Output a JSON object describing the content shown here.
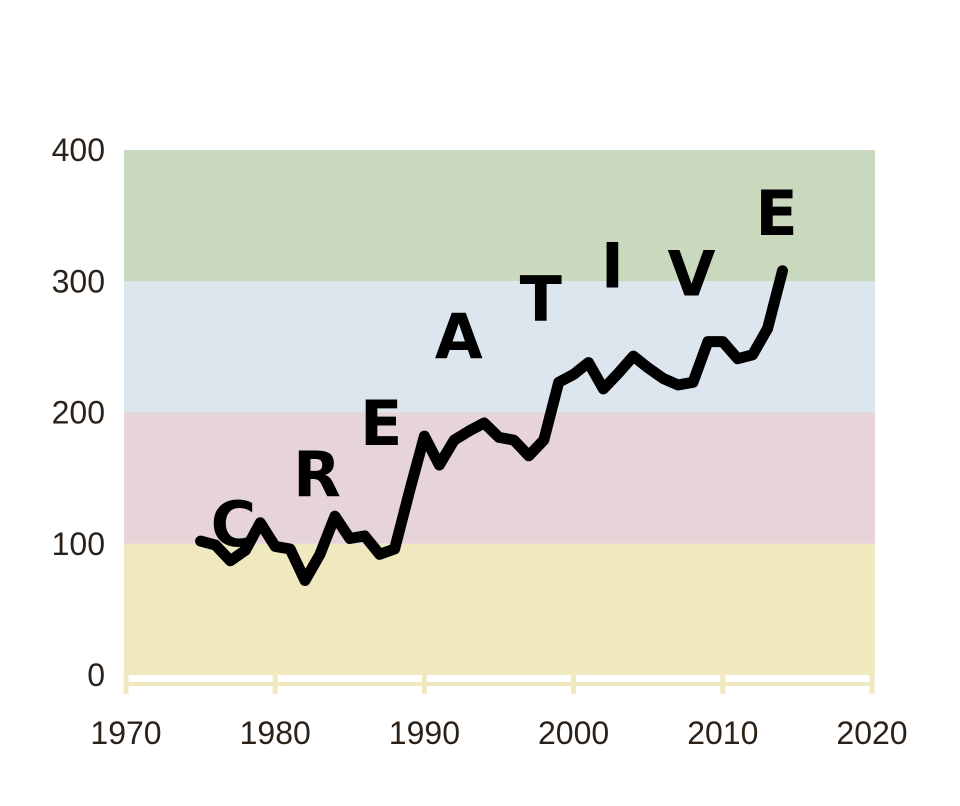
{
  "chart_data": {
    "type": "line",
    "title": "",
    "xlabel": "",
    "ylabel": "",
    "xlim": [
      1970,
      2020
    ],
    "ylim": [
      0,
      400
    ],
    "grid": false,
    "x_ticks": [
      1970,
      1980,
      1990,
      2000,
      2010,
      2020
    ],
    "y_ticks": [
      0,
      100,
      200,
      300,
      400
    ],
    "bands": [
      {
        "from": 0,
        "to": 100,
        "color": "#f0e9c0"
      },
      {
        "from": 100,
        "to": 200,
        "color": "#e6d4d8"
      },
      {
        "from": 200,
        "to": 300,
        "color": "#dde6ee"
      },
      {
        "from": 300,
        "to": 400,
        "color": "#cad9be"
      }
    ],
    "line_color": "#000000",
    "series": [
      {
        "x": [
          1975,
          1976,
          1977,
          1978,
          1979,
          1980,
          1981,
          1982,
          1983,
          1984,
          1985,
          1986,
          1987,
          1988,
          1989,
          1990,
          1991,
          1992,
          1993,
          1994,
          1995,
          1996,
          1997,
          1998,
          1999,
          2000,
          2001,
          2002,
          2003,
          2004,
          2005,
          2006,
          2007,
          2008,
          2009,
          2010,
          2011,
          2012,
          2013,
          2014
        ],
        "y": [
          102,
          99,
          87,
          95,
          116,
          98,
          96,
          72,
          92,
          121,
          104,
          106,
          92,
          96,
          140,
          182,
          160,
          179,
          186,
          192,
          181,
          179,
          167,
          179,
          223,
          229,
          238,
          218,
          230,
          243,
          234,
          226,
          221,
          223,
          254,
          254,
          241,
          244,
          264,
          308
        ]
      }
    ],
    "annotations": [
      {
        "text": "C",
        "x": 1977.2,
        "y": 115
      },
      {
        "text": "R",
        "x": 1982.8,
        "y": 153
      },
      {
        "text": "E",
        "x": 1987.1,
        "y": 192
      },
      {
        "text": "A",
        "x": 1992.3,
        "y": 258
      },
      {
        "text": "T",
        "x": 1997.8,
        "y": 287
      },
      {
        "text": "I",
        "x": 2002.6,
        "y": 312
      },
      {
        "text": "V",
        "x": 2007.9,
        "y": 306
      },
      {
        "text": "E",
        "x": 2013.6,
        "y": 352
      }
    ]
  }
}
